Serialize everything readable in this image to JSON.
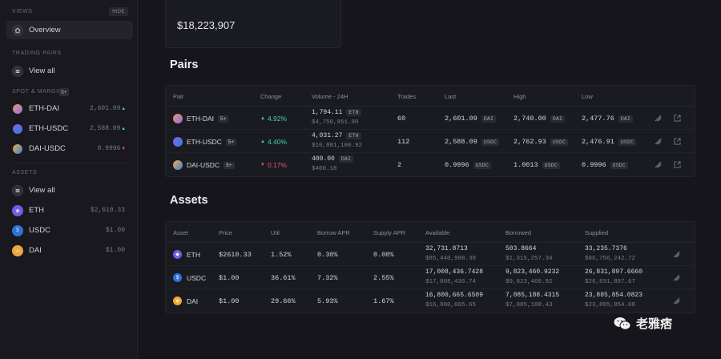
{
  "sidebar": {
    "views_label": "VIEWS",
    "hide_label": "HIDE",
    "overview_label": "Overview",
    "trading_pairs_label": "TRADING PAIRS",
    "view_all_pairs": "View all",
    "spot_margin_label": "SPOT & MARGIN",
    "spot_count": "5+",
    "pairs": [
      {
        "name": "ETH-DAI",
        "price": "2,601.09",
        "dir": "up"
      },
      {
        "name": "ETH-USDC",
        "price": "2,588.09",
        "dir": "up"
      },
      {
        "name": "DAI-USDC",
        "price": "0.9996",
        "dir": "down"
      }
    ],
    "assets_label": "ASSETS",
    "view_all_assets": "View all",
    "assets": [
      {
        "name": "ETH",
        "price": "$2,610.33"
      },
      {
        "name": "USDC",
        "price": "$1.00"
      },
      {
        "name": "DAI",
        "price": "$1.00"
      }
    ]
  },
  "top_card": {
    "value": "$18,223,907"
  },
  "pairs_section": {
    "title": "Pairs",
    "headers": [
      "Pair",
      "Change",
      "Volume - 24H",
      "Trades",
      "Last",
      "High",
      "Low"
    ],
    "rows": [
      {
        "pair": "ETH-DAI",
        "badge": "5+",
        "change": "4.92%",
        "dir": "up",
        "vol": "1,794.11",
        "vol_unit": "ETH",
        "vol_usd": "$4,750,951.90",
        "trades": "60",
        "last": "2,601.09",
        "last_unit": "DAI",
        "high": "2,740.00",
        "high_unit": "DAI",
        "low": "2,477.76",
        "low_unit": "DAI"
      },
      {
        "pair": "ETH-USDC",
        "badge": "5+",
        "change": "4.40%",
        "dir": "up",
        "vol": "4,031.27",
        "vol_unit": "ETH",
        "vol_usd": "$10,801,100.92",
        "trades": "112",
        "last": "2,588.09",
        "last_unit": "USDC",
        "high": "2,762.93",
        "high_unit": "USDC",
        "low": "2,476.91",
        "low_unit": "USDC"
      },
      {
        "pair": "DAI-USDC",
        "badge": "5+",
        "change": "0.17%",
        "dir": "down",
        "vol": "400.00",
        "vol_unit": "DAI",
        "vol_usd": "$400.18",
        "trades": "2",
        "last": "0.9996",
        "last_unit": "USDC",
        "high": "1.0013",
        "high_unit": "USDC",
        "low": "0.9996",
        "low_unit": "USDC"
      }
    ]
  },
  "assets_section": {
    "title": "Assets",
    "headers": [
      "Asset",
      "Price",
      "Util",
      "Borrow APR",
      "Supply APR",
      "Available",
      "Borrowed",
      "Supplied"
    ],
    "rows": [
      {
        "asset": "ETH",
        "price": "$2610.33",
        "util": "1.52%",
        "borrow": "0.30%",
        "supply": "0.00%",
        "avail": "32,731.8713",
        "avail_usd": "$85,440,988.38",
        "borrowed": "503.8664",
        "borrowed_usd": "$1,315,257.34",
        "supplied": "33,235.7376",
        "supplied_usd": "$86,756,242.72"
      },
      {
        "asset": "USDC",
        "price": "$1.00",
        "util": "36.61%",
        "borrow": "7.32%",
        "supply": "2.55%",
        "avail": "17,008,436.7428",
        "avail_usd": "$17,008,436.74",
        "borrowed": "9,823,460.9232",
        "borrowed_usd": "$9,823,460.92",
        "supplied": "26,831,897.6660",
        "supplied_usd": "$26,831,897.67"
      },
      {
        "asset": "DAI",
        "price": "$1.00",
        "util": "29.66%",
        "borrow": "5.93%",
        "supply": "1.67%",
        "avail": "16,800,665.6509",
        "avail_usd": "$16,800,665.65",
        "borrowed": "7,085,188.4315",
        "borrowed_usd": "$7,085,188.43",
        "supplied": "23,885,854.0823",
        "supplied_usd": "$23,885,854.08"
      }
    ]
  },
  "watermark": {
    "text": "老雅痞"
  }
}
